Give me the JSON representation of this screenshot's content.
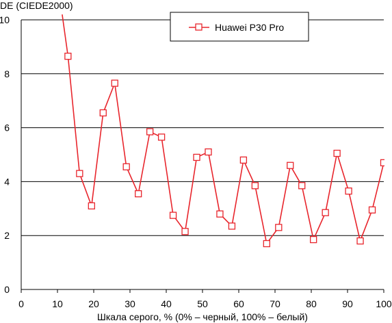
{
  "chart_data": {
    "type": "line",
    "ylabel": "DE (CIEDE2000)",
    "xlabel": "Шкала серого, % (0% – черный, 100% – белый)",
    "xlim": [
      0,
      100
    ],
    "ylim": [
      0,
      10
    ],
    "xticks": [
      0,
      10,
      20,
      30,
      40,
      50,
      60,
      70,
      80,
      90,
      100
    ],
    "yticks": [
      0,
      2,
      4,
      6,
      8,
      10
    ],
    "grid": "horizontal",
    "legend_position": "top",
    "series": [
      {
        "name": "Huawei P30 Pro",
        "color": "#e8252c",
        "marker": "square",
        "x": [
          11.3,
          12.9,
          16.1,
          19.4,
          22.6,
          25.8,
          29.0,
          32.3,
          35.5,
          38.7,
          41.9,
          45.2,
          48.4,
          51.6,
          54.8,
          58.1,
          61.3,
          64.5,
          67.7,
          71.0,
          74.2,
          77.4,
          80.6,
          83.9,
          87.1,
          90.3,
          93.5,
          96.8,
          100.0
        ],
        "y": [
          10.2,
          8.65,
          4.3,
          3.1,
          6.55,
          7.65,
          4.55,
          3.55,
          5.85,
          5.65,
          2.75,
          2.15,
          4.9,
          5.1,
          2.8,
          2.35,
          4.8,
          3.85,
          1.7,
          2.3,
          4.6,
          3.85,
          1.85,
          2.85,
          5.05,
          3.65,
          1.8,
          2.95,
          4.7
        ]
      }
    ]
  }
}
